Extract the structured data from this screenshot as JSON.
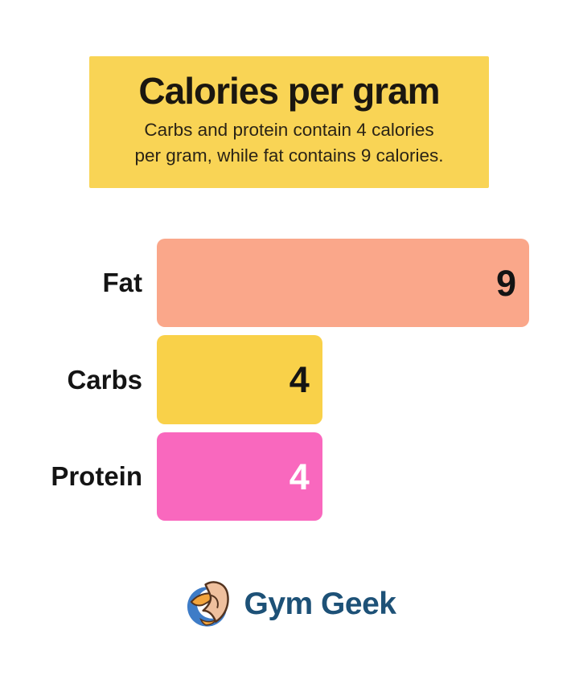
{
  "header": {
    "title": "Calories per gram",
    "subtitle_lines": [
      "Carbs and protein contain 4 calories",
      "per gram, while fat contains 9 calories."
    ],
    "background": "#F9D455",
    "title_color": "#1B1710",
    "subtitle_color": "#2B2416"
  },
  "chart_data": {
    "type": "bar",
    "orientation": "horizontal",
    "title": "Calories per gram",
    "categories": [
      "Fat",
      "Carbs",
      "Protein"
    ],
    "values": [
      9,
      4,
      4
    ],
    "unit": "calories per gram",
    "xlim": [
      0,
      9
    ],
    "bar_colors": [
      "#FAA78A",
      "#F9D149",
      "#F968BE"
    ],
    "value_label_colors": [
      "#141414",
      "#141414",
      "#FFFFFF"
    ],
    "data_labels": "inside-right",
    "gridlines": false,
    "axes_hidden": true,
    "legend": "none"
  },
  "footer": {
    "brand": "Gym Geek",
    "brand_color": "#1D5177",
    "logo_icon": "flexed-bicep-globe",
    "logo_colors": {
      "blue": "#3E7CC7",
      "orange": "#F2A43C",
      "skin": "#EFC09E",
      "outline": "#53331F"
    }
  }
}
